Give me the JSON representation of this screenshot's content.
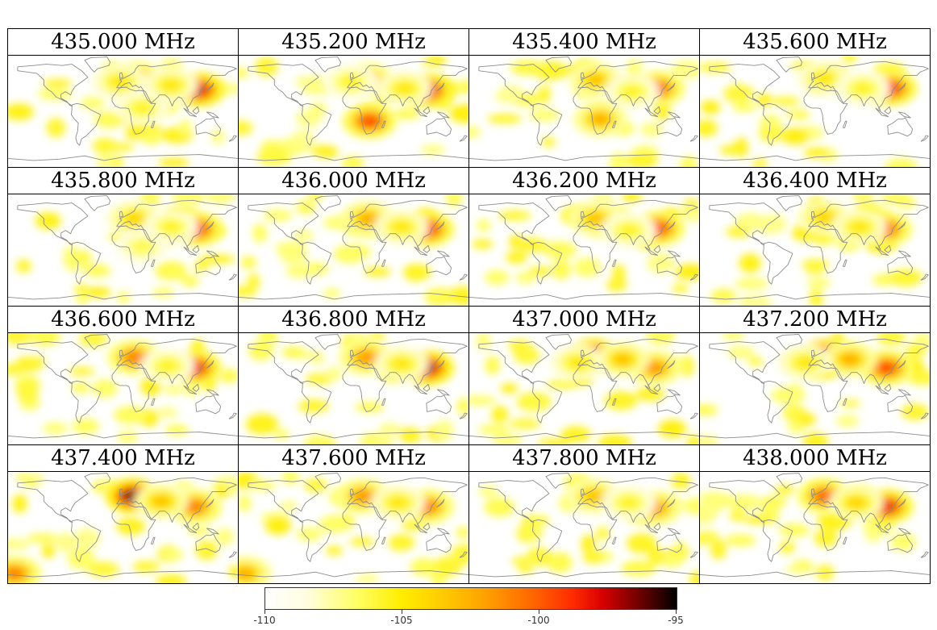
{
  "panels": [
    {
      "label": "435.000 MHz",
      "spots": [
        {
          "lon": 20,
          "lat": 50,
          "i": 0.55
        },
        {
          "lon": 118,
          "lat": 33,
          "i": 0.82
        },
        {
          "lon": -5,
          "lat": 45,
          "i": 0.35
        },
        {
          "lon": 75,
          "lat": 40,
          "i": 0.35
        },
        {
          "lon": 30,
          "lat": 5,
          "i": 0.3
        }
      ]
    },
    {
      "label": "435.200 MHz",
      "spots": [
        {
          "lon": 20,
          "lat": 48,
          "i": 0.55
        },
        {
          "lon": 115,
          "lat": 32,
          "i": 0.8
        },
        {
          "lon": 25,
          "lat": -15,
          "i": 0.7
        },
        {
          "lon": -5,
          "lat": 45,
          "i": 0.3
        },
        {
          "lon": 80,
          "lat": 35,
          "i": 0.35
        }
      ]
    },
    {
      "label": "435.400 MHz",
      "spots": [
        {
          "lon": 18,
          "lat": 48,
          "i": 0.45
        },
        {
          "lon": 115,
          "lat": 35,
          "i": 0.65
        },
        {
          "lon": 25,
          "lat": -12,
          "i": 0.5
        },
        {
          "lon": 75,
          "lat": 30,
          "i": 0.3
        }
      ]
    },
    {
      "label": "435.600 MHz",
      "spots": [
        {
          "lon": 15,
          "lat": 50,
          "i": 0.35
        },
        {
          "lon": 118,
          "lat": 35,
          "i": 0.75
        },
        {
          "lon": 75,
          "lat": 35,
          "i": 0.3
        }
      ]
    },
    {
      "label": "435.800 MHz",
      "spots": [
        {
          "lon": 18,
          "lat": 48,
          "i": 0.4
        },
        {
          "lon": 115,
          "lat": 32,
          "i": 0.72
        },
        {
          "lon": 75,
          "lat": 35,
          "i": 0.3
        },
        {
          "lon": 30,
          "lat": 5,
          "i": 0.25
        }
      ]
    },
    {
      "label": "436.000 MHz",
      "spots": [
        {
          "lon": 22,
          "lat": 48,
          "i": 0.5
        },
        {
          "lon": 115,
          "lat": 32,
          "i": 0.75
        },
        {
          "lon": 75,
          "lat": 35,
          "i": 0.35
        }
      ]
    },
    {
      "label": "436.200 MHz",
      "spots": [
        {
          "lon": 18,
          "lat": 48,
          "i": 0.45
        },
        {
          "lon": 115,
          "lat": 33,
          "i": 0.7
        },
        {
          "lon": 70,
          "lat": 30,
          "i": 0.3
        }
      ]
    },
    {
      "label": "436.400 MHz",
      "spots": [
        {
          "lon": 15,
          "lat": 50,
          "i": 0.4
        },
        {
          "lon": 110,
          "lat": 32,
          "i": 0.65
        },
        {
          "lon": 70,
          "lat": 35,
          "i": 0.35
        }
      ]
    },
    {
      "label": "436.600 MHz",
      "spots": [
        {
          "lon": 18,
          "lat": 48,
          "i": 0.6
        },
        {
          "lon": 112,
          "lat": 32,
          "i": 0.78
        },
        {
          "lon": 70,
          "lat": 35,
          "i": 0.3
        }
      ]
    },
    {
      "label": "436.800 MHz",
      "spots": [
        {
          "lon": 20,
          "lat": 48,
          "i": 0.55
        },
        {
          "lon": 115,
          "lat": 32,
          "i": 0.85
        },
        {
          "lon": 75,
          "lat": 38,
          "i": 0.35
        }
      ]
    },
    {
      "label": "437.000 MHz",
      "spots": [
        {
          "lon": 15,
          "lat": 50,
          "i": 0.88
        },
        {
          "lon": 110,
          "lat": 32,
          "i": 0.55
        },
        {
          "lon": 60,
          "lat": 45,
          "i": 0.45
        },
        {
          "lon": -10,
          "lat": 40,
          "i": 0.35
        }
      ]
    },
    {
      "label": "437.200 MHz",
      "spots": [
        {
          "lon": 15,
          "lat": 48,
          "i": 1.0
        },
        {
          "lon": 112,
          "lat": 32,
          "i": 0.7
        },
        {
          "lon": 55,
          "lat": 45,
          "i": 0.5
        },
        {
          "lon": -15,
          "lat": 40,
          "i": 0.35
        }
      ]
    },
    {
      "label": "437.400 MHz",
      "spots": [
        {
          "lon": 15,
          "lat": 48,
          "i": 0.92
        },
        {
          "lon": 112,
          "lat": 32,
          "i": 0.6
        },
        {
          "lon": 60,
          "lat": 40,
          "i": 0.45
        },
        {
          "lon": -170,
          "lat": -70,
          "i": 0.6
        }
      ]
    },
    {
      "label": "437.600 MHz",
      "spots": [
        {
          "lon": 15,
          "lat": 48,
          "i": 0.55
        },
        {
          "lon": 115,
          "lat": 32,
          "i": 0.6
        },
        {
          "lon": 70,
          "lat": 38,
          "i": 0.35
        },
        {
          "lon": -170,
          "lat": -70,
          "i": 0.5
        }
      ]
    },
    {
      "label": "437.800 MHz",
      "spots": [
        {
          "lon": 15,
          "lat": 48,
          "i": 0.45
        },
        {
          "lon": 110,
          "lat": 30,
          "i": 0.55
        },
        {
          "lon": 70,
          "lat": 38,
          "i": 0.3
        }
      ]
    },
    {
      "label": "438.000 MHz",
      "spots": [
        {
          "lon": 15,
          "lat": 48,
          "i": 0.65
        },
        {
          "lon": 112,
          "lat": 32,
          "i": 0.78
        },
        {
          "lon": 65,
          "lat": 38,
          "i": 0.4
        }
      ]
    }
  ],
  "colorbar": {
    "ticks": [
      "-110",
      "-105",
      "-100",
      "-95"
    ],
    "range": [
      -110,
      -95
    ]
  },
  "colors": {
    "coastline": "#8c8c8c"
  }
}
